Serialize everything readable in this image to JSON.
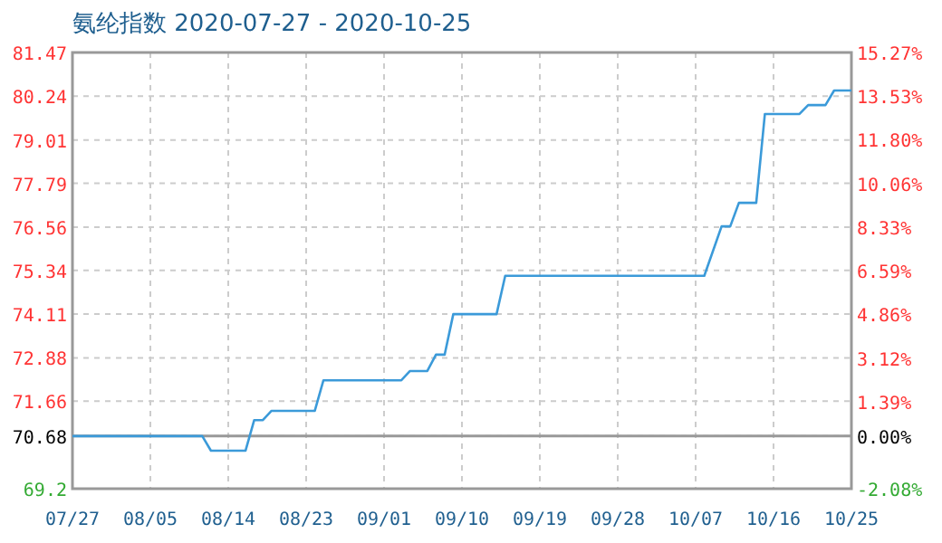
{
  "chart_data": {
    "type": "line",
    "title": "氨纶指数 2020-07-27 - 2020-10-25",
    "xlim": [
      "2020-07-27",
      "2020-10-25"
    ],
    "xticks": [
      {
        "value": "2020-07-27",
        "label": "07/27"
      },
      {
        "value": "2020-08-05",
        "label": "08/05"
      },
      {
        "value": "2020-08-14",
        "label": "08/14"
      },
      {
        "value": "2020-08-23",
        "label": "08/23"
      },
      {
        "value": "2020-09-01",
        "label": "09/01"
      },
      {
        "value": "2020-09-10",
        "label": "09/10"
      },
      {
        "value": "2020-09-19",
        "label": "09/19"
      },
      {
        "value": "2020-09-28",
        "label": "09/28"
      },
      {
        "value": "2020-10-07",
        "label": "10/07"
      },
      {
        "value": "2020-10-16",
        "label": "10/16"
      },
      {
        "value": "2020-10-25",
        "label": "10/25"
      }
    ],
    "ylim": [
      69.2,
      81.47
    ],
    "yticks": [
      69.2,
      70.68,
      71.66,
      72.88,
      74.11,
      75.34,
      76.56,
      77.79,
      79.01,
      80.24,
      81.47
    ],
    "y2lim": [
      -2.08,
      15.27
    ],
    "y2ticks": [
      {
        "value": -2.08,
        "label": "-2.08%"
      },
      {
        "value": 0,
        "label": "0.00%"
      },
      {
        "value": 1.39,
        "label": "1.39%"
      },
      {
        "value": 3.12,
        "label": "3.12%"
      },
      {
        "value": 4.86,
        "label": "4.86%"
      },
      {
        "value": 6.59,
        "label": "6.59%"
      },
      {
        "value": 8.33,
        "label": "8.33%"
      },
      {
        "value": 10.06,
        "label": "10.06%"
      },
      {
        "value": 11.8,
        "label": "11.80%"
      },
      {
        "value": 13.53,
        "label": "13.53%"
      },
      {
        "value": 15.27,
        "label": "15.27%"
      }
    ],
    "grid": true,
    "marker": "none",
    "line_style": "solid",
    "ref_lines": [
      {
        "axis": "y",
        "value": 70.68,
        "color": "#999999"
      }
    ],
    "series": [
      {
        "color": "#3b9ad9",
        "x": [
          "2020-07-27",
          "2020-08-11",
          "2020-08-12",
          "2020-08-16",
          "2020-08-17",
          "2020-08-18",
          "2020-08-19",
          "2020-08-24",
          "2020-08-25",
          "2020-09-03",
          "2020-09-04",
          "2020-09-06",
          "2020-09-07",
          "2020-09-08",
          "2020-09-09",
          "2020-09-14",
          "2020-09-15",
          "2020-10-08",
          "2020-10-10",
          "2020-10-11",
          "2020-10-12",
          "2020-10-14",
          "2020-10-15",
          "2020-10-19",
          "2020-10-20",
          "2020-10-22",
          "2020-10-23",
          "2020-10-25"
        ],
        "values": [
          70.68,
          70.68,
          70.27,
          70.27,
          71.13,
          71.13,
          71.39,
          71.39,
          72.25,
          72.25,
          72.51,
          72.51,
          72.97,
          72.97,
          74.11,
          74.11,
          75.19,
          75.19,
          76.58,
          76.58,
          77.24,
          77.24,
          79.74,
          79.74,
          79.99,
          79.99,
          80.4,
          80.4
        ]
      }
    ]
  }
}
